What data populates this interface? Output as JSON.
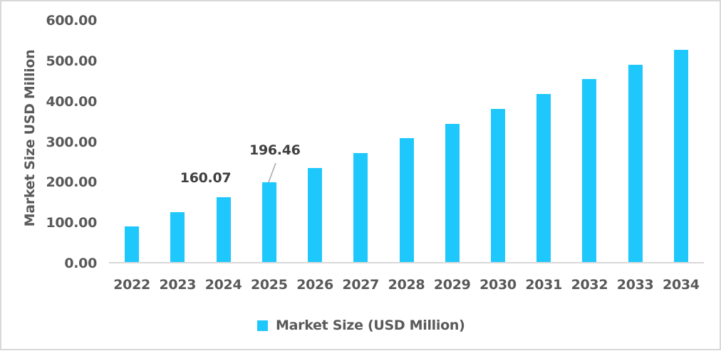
{
  "chart_data": {
    "type": "bar",
    "title": "",
    "xlabel": "",
    "ylabel": "Market Size USD Million",
    "ylim": [
      0,
      600
    ],
    "yticks": [
      "0.00",
      "100.00",
      "200.00",
      "300.00",
      "400.00",
      "500.00",
      "600.00"
    ],
    "grid": false,
    "legend_position": "bottom",
    "categories": [
      "2022",
      "2023",
      "2024",
      "2025",
      "2026",
      "2027",
      "2028",
      "2029",
      "2030",
      "2031",
      "2032",
      "2033",
      "2034"
    ],
    "series": [
      {
        "name": "Market Size (USD Million)",
        "color": "#1ec8fc",
        "values": [
          87.5,
          124,
          160.07,
          196.46,
          233,
          270,
          307,
          342,
          379,
          416,
          453,
          488,
          525
        ]
      }
    ],
    "annotations": [
      {
        "category": "2024",
        "label": "160.07"
      },
      {
        "category": "2025",
        "label": "196.46"
      }
    ]
  },
  "legend": {
    "label": "Market Size (USD Million)"
  }
}
